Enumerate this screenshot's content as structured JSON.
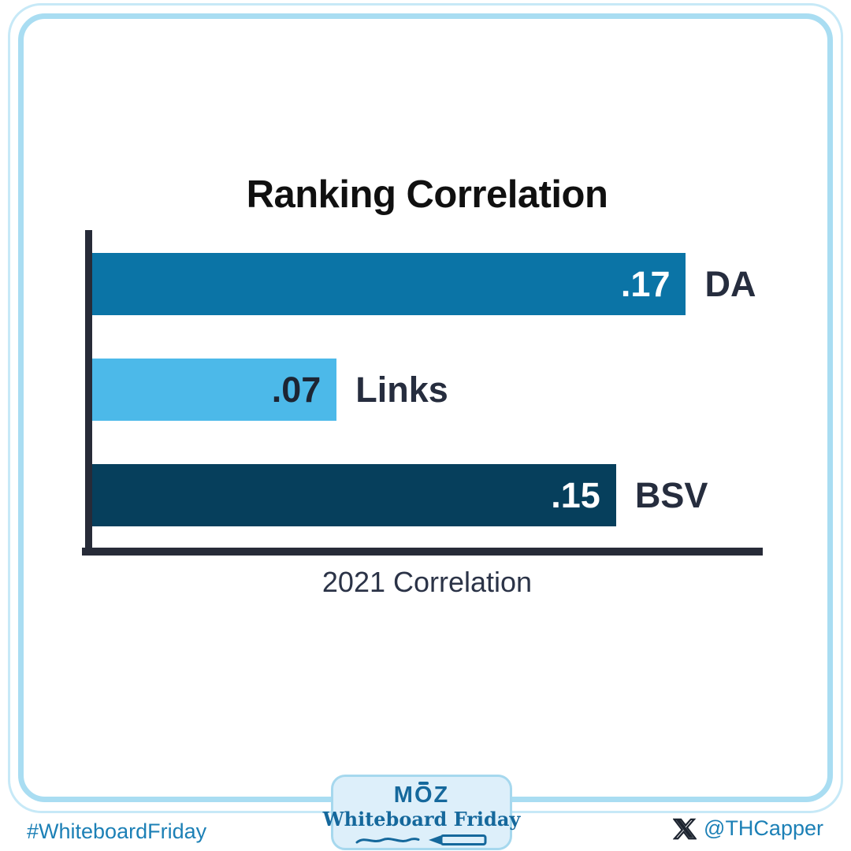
{
  "chart_data": {
    "type": "bar",
    "orientation": "horizontal",
    "title": "Ranking Correlation",
    "xlabel": "2021 Correlation",
    "ylabel": "",
    "categories": [
      "DA",
      "Links",
      "BSV"
    ],
    "values": [
      0.17,
      0.07,
      0.15
    ],
    "value_labels": [
      ".17",
      ".07",
      ".15"
    ],
    "bar_colors": [
      "#0b74a6",
      "#4cb9e9",
      "#063f5c"
    ],
    "value_label_colors": [
      "#ffffff",
      "#1d2533",
      "#ffffff"
    ],
    "category_label_color": "#262d3e",
    "axis_color": "#272b38",
    "xlim": [
      0,
      0.192
    ],
    "grid": false,
    "legend_position": "none"
  },
  "footer": {
    "hashtag": "#WhiteboardFriday",
    "handle": "@THCapper",
    "badge": {
      "brand": "MOZ",
      "series": "Whiteboard Friday"
    }
  },
  "colors": {
    "frame_outer": "#c7e9f7",
    "frame_inner": "#a9ddf2",
    "badge_bg": "#ddeffa",
    "badge_border": "#a6d8ee",
    "brand_blue": "#15689c",
    "link_blue": "#1c80b6",
    "title_color": "#101010",
    "x_logo_color": "#1d2430"
  }
}
